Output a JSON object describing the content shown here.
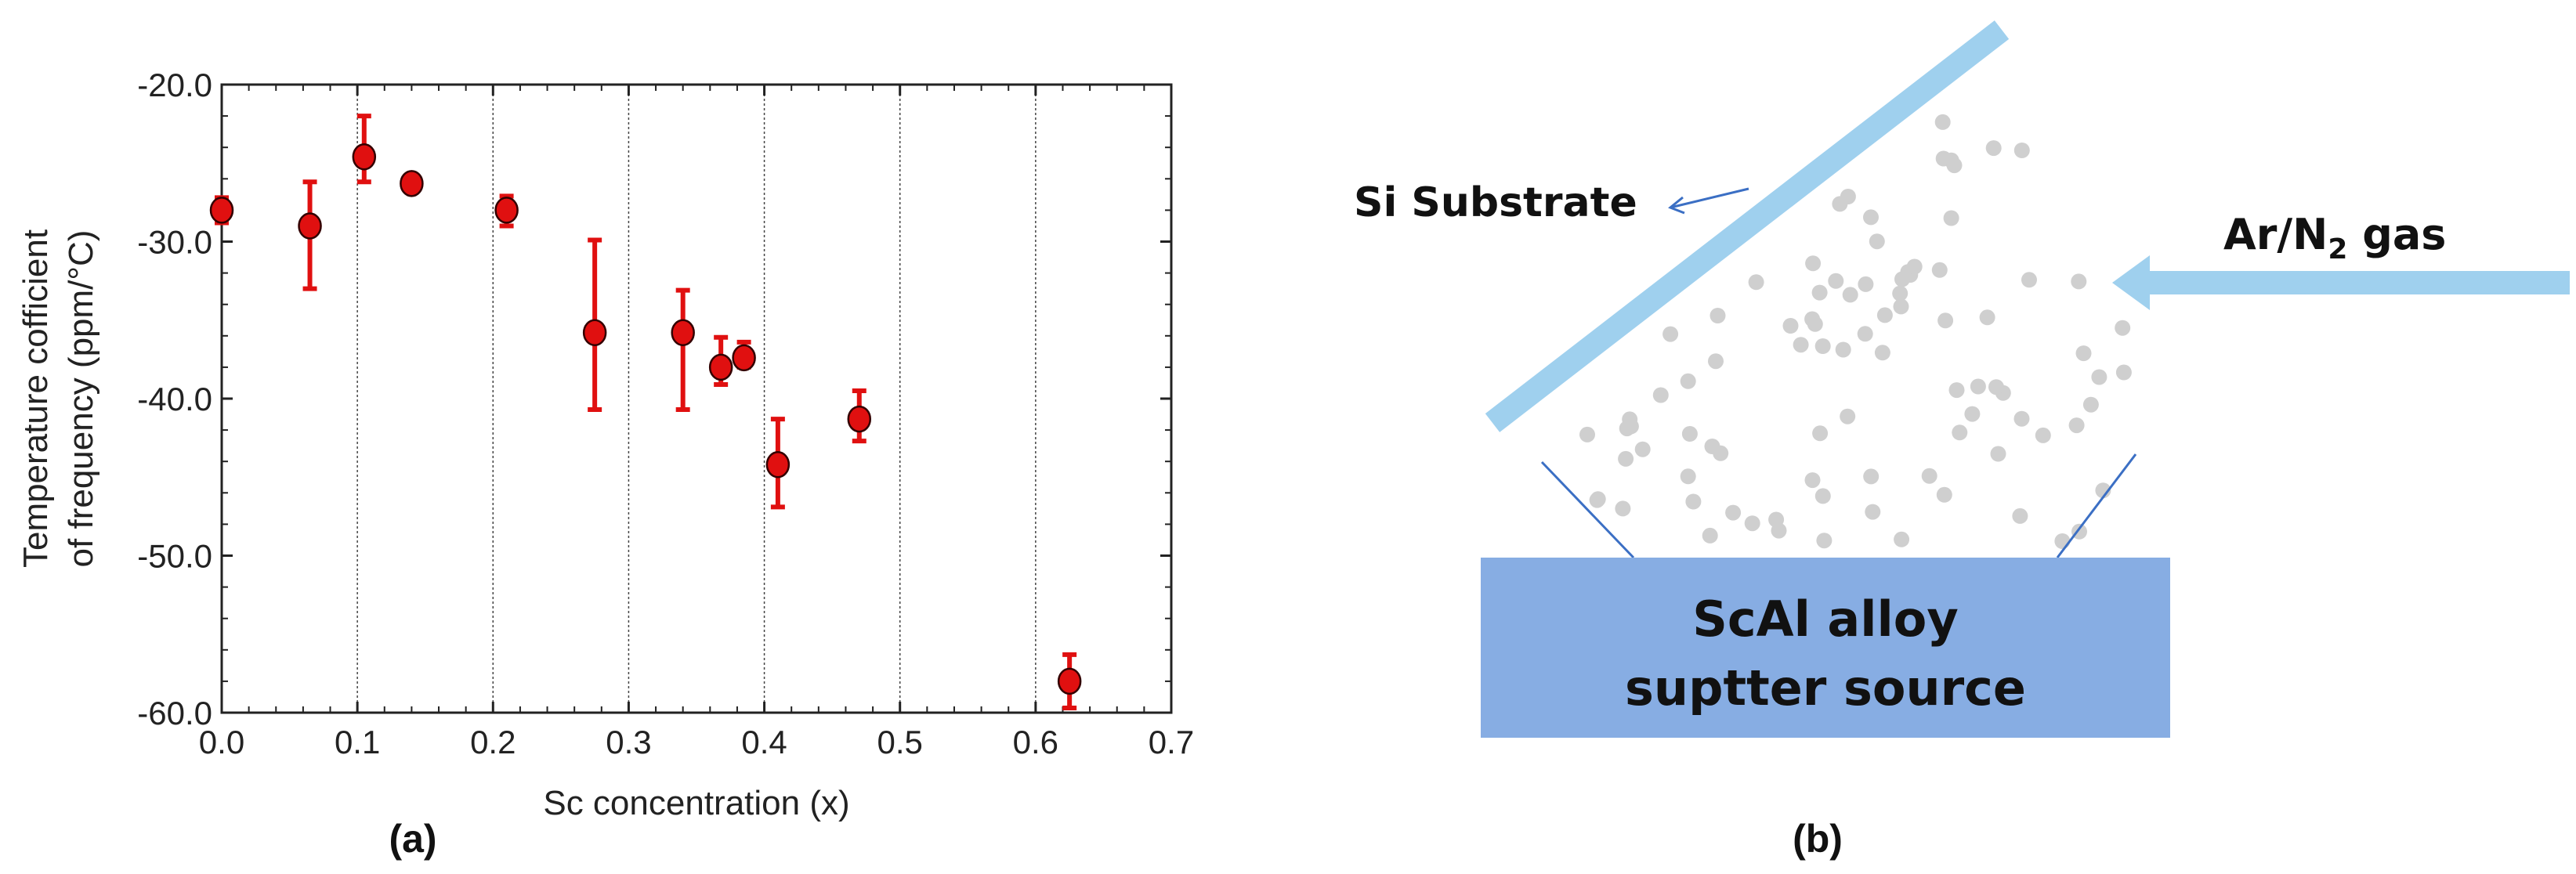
{
  "chart_data": {
    "type": "scatter",
    "xlabel": "Sc concentration (x)",
    "ylabel_lines": [
      "Temperature cofficient",
      "of frequency (ppm/°C)"
    ],
    "xlim": [
      0.0,
      0.7
    ],
    "ylim": [
      -60.0,
      -20.0
    ],
    "xticks": [
      "0.0",
      "0.1",
      "0.2",
      "0.3",
      "0.4",
      "0.5",
      "0.6",
      "0.7"
    ],
    "yticks": [
      "-20.0",
      "-30.0",
      "-40.0",
      "-50.0",
      "-60.0"
    ],
    "grid": "vertical",
    "marker_color": "#e01010",
    "error_bar_color": "#e01010",
    "points": [
      {
        "x": 0.0,
        "y": -28.0,
        "err_low": 0.8,
        "err_high": 0.8
      },
      {
        "x": 0.065,
        "y": -29.0,
        "err_low": 4.0,
        "err_high": 2.8
      },
      {
        "x": 0.105,
        "y": -24.6,
        "err_low": 1.6,
        "err_high": 2.6
      },
      {
        "x": 0.14,
        "y": -26.3,
        "err_low": 0.4,
        "err_high": 0.4
      },
      {
        "x": 0.21,
        "y": -28.0,
        "err_low": 1.0,
        "err_high": 0.9
      },
      {
        "x": 0.275,
        "y": -35.8,
        "err_low": 4.9,
        "err_high": 5.9
      },
      {
        "x": 0.34,
        "y": -35.8,
        "err_low": 4.9,
        "err_high": 2.7
      },
      {
        "x": 0.368,
        "y": -38.0,
        "err_low": 1.1,
        "err_high": 1.9
      },
      {
        "x": 0.385,
        "y": -37.4,
        "err_low": 0.6,
        "err_high": 1.0
      },
      {
        "x": 0.41,
        "y": -44.2,
        "err_low": 2.7,
        "err_high": 2.9
      },
      {
        "x": 0.47,
        "y": -41.3,
        "err_low": 1.4,
        "err_high": 1.8
      },
      {
        "x": 0.625,
        "y": -58.0,
        "err_low": 1.7,
        "err_high": 1.7
      }
    ]
  },
  "panel_a_label": "(a)",
  "diagram": {
    "substrate_label": "Si Substrate",
    "gas_label_main": "Ar/N",
    "gas_label_sub": "2",
    "gas_label_tail": " gas",
    "source_label_line1": "ScAl alloy",
    "source_label_line2": "suptter source",
    "panel_label": "(b)",
    "substrate_color": "#9fd0ee",
    "source_color": "#87ade3",
    "gas_arrow_color": "#9fd0ee",
    "particle_color": "#cfcfcf",
    "particle_count": 90
  }
}
